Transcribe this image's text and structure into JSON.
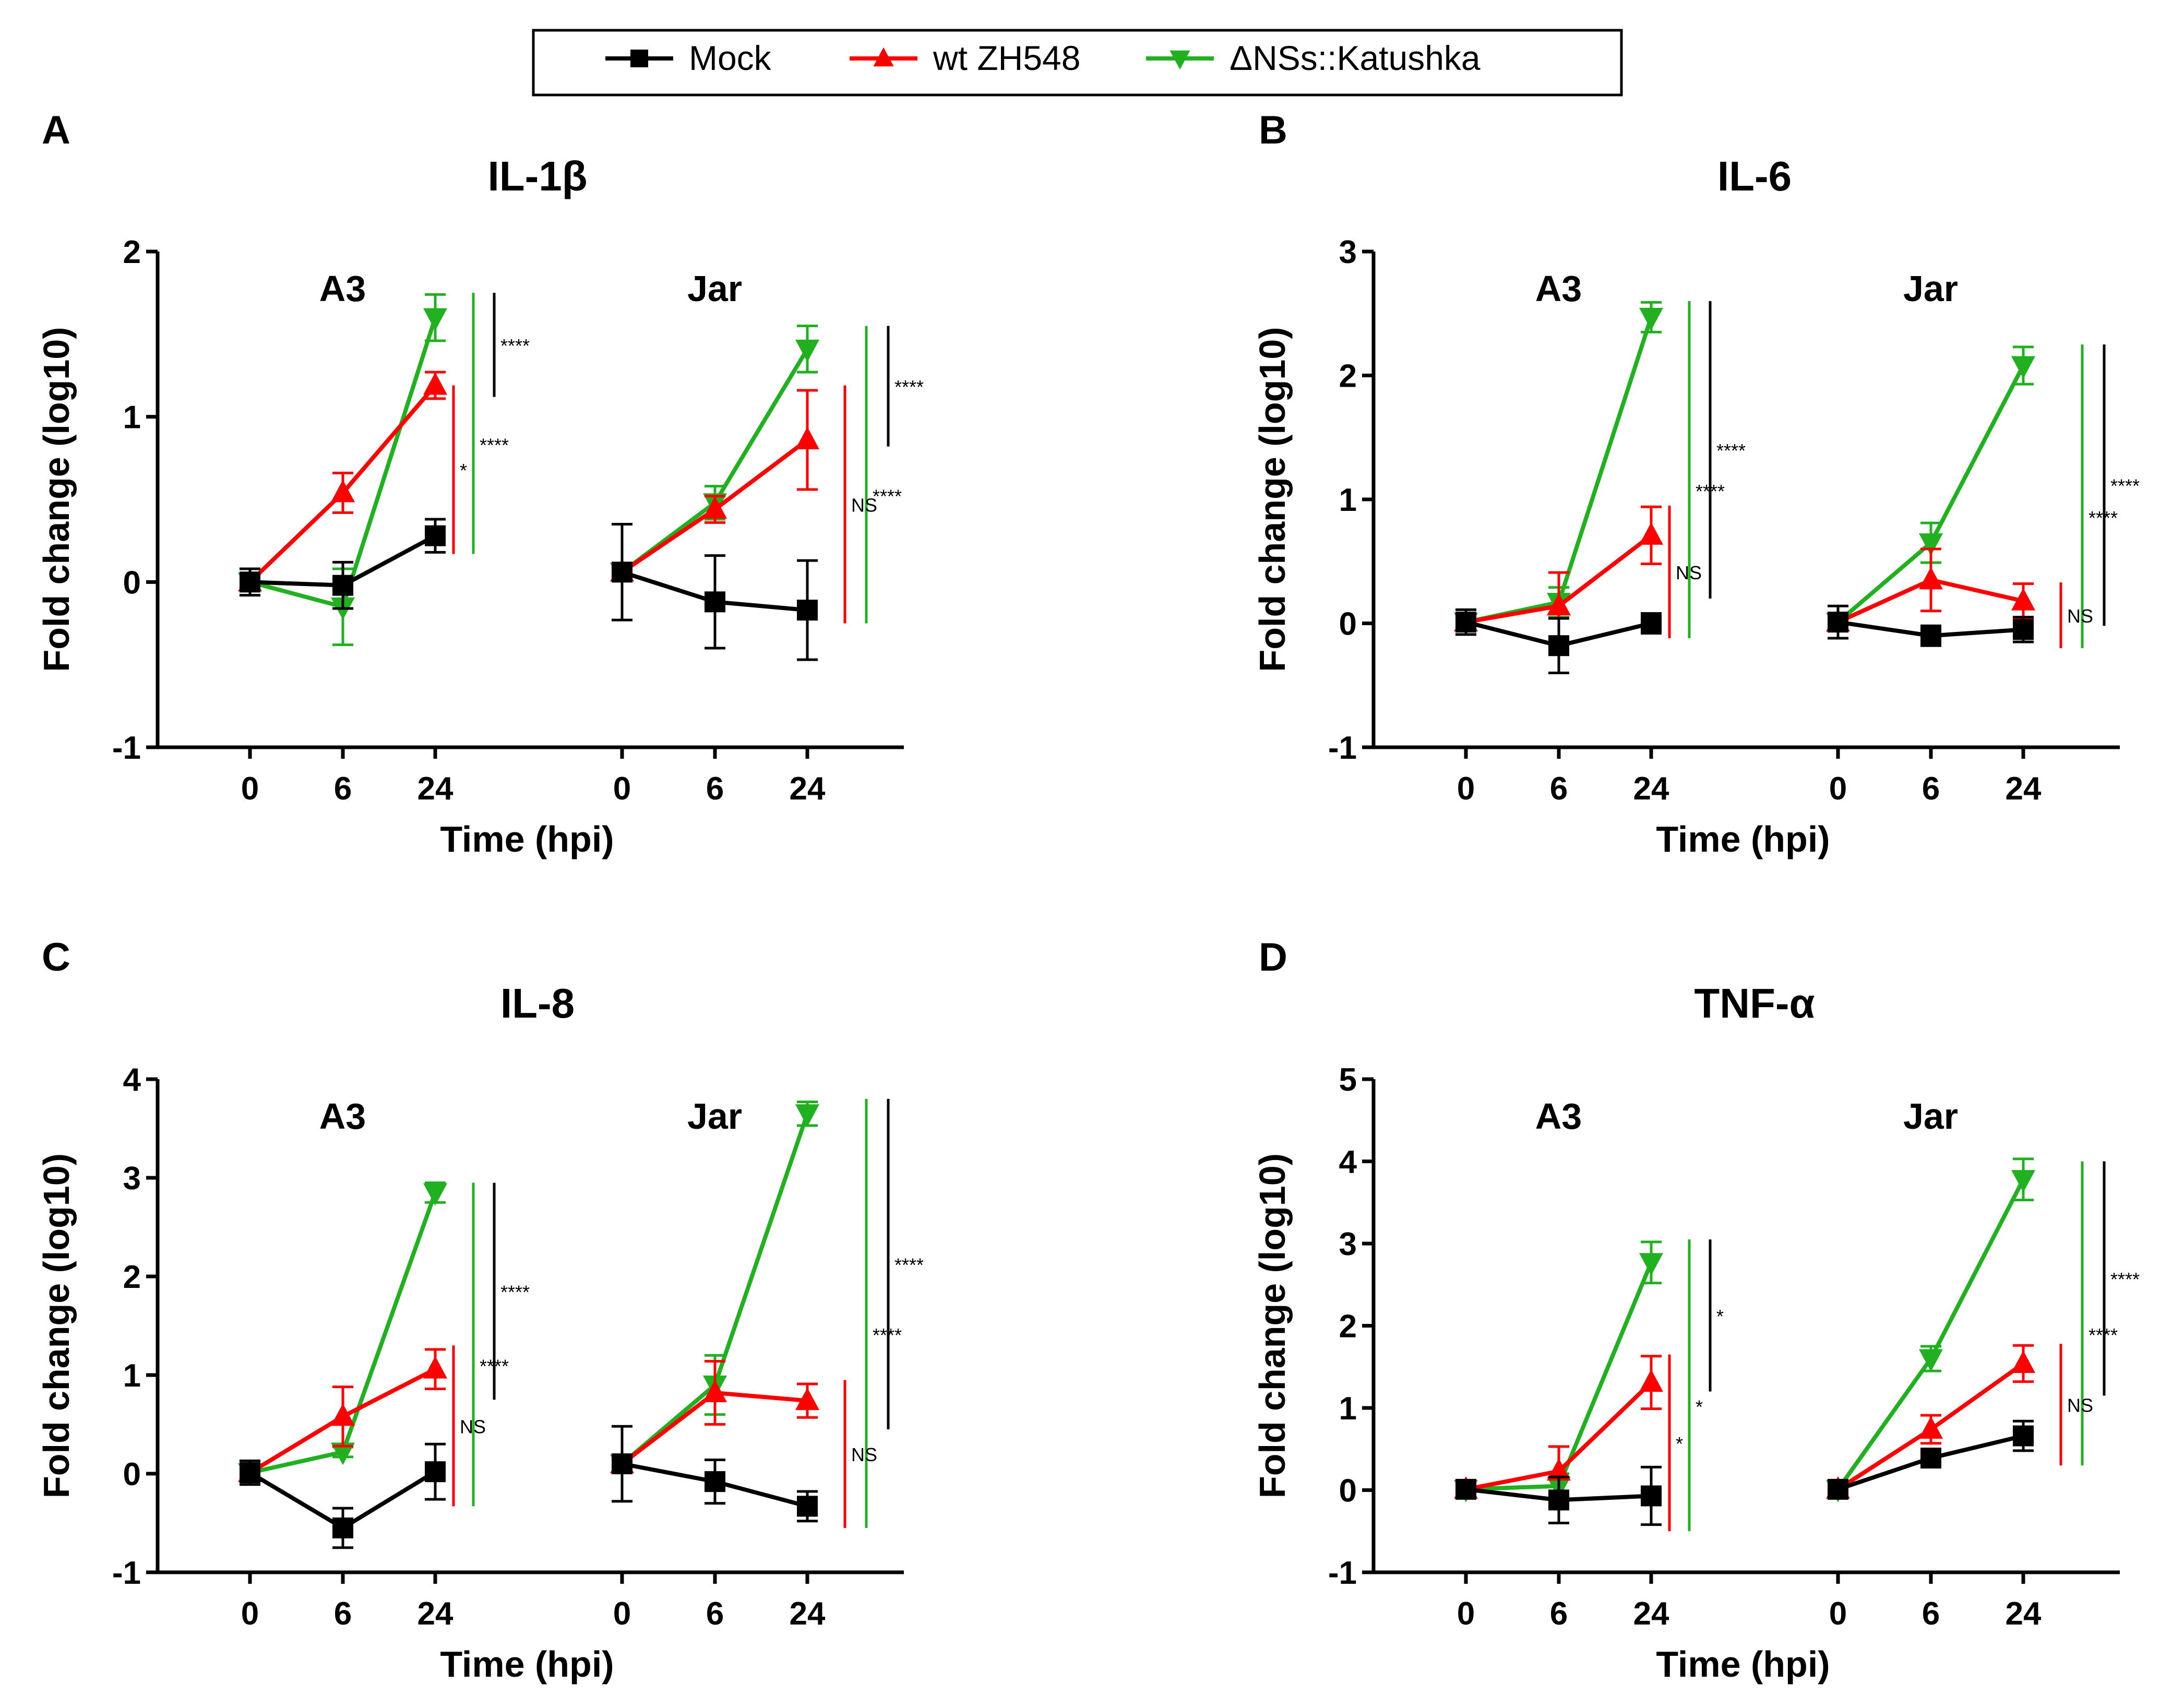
{
  "legend": {
    "items": [
      {
        "label": "Mock",
        "color": "#000000",
        "marker": "square"
      },
      {
        "label": "wt ZH548",
        "color": "#ff0000",
        "marker": "triangle-up"
      },
      {
        "label": "ΔNSs::Katushka",
        "color": "#20b020",
        "marker": "triangle-down"
      }
    ]
  },
  "colors": {
    "mock": "#000000",
    "wt": "#ff0000",
    "dnss": "#20b020",
    "axis": "#000000"
  },
  "chart_data": [
    {
      "panel": "A",
      "type": "line",
      "title": "IL-1β",
      "ylabel": "Fold change (log10)",
      "xlabel": "Time (hpi)",
      "ylim": [
        -1,
        2
      ],
      "yticks": [
        "-1",
        "0",
        "1",
        "2"
      ],
      "groups": [
        {
          "name": "A3",
          "x": [
            "0",
            "6",
            "24"
          ],
          "series": [
            {
              "name": "Mock",
              "values": [
                0.0,
                -0.02,
                0.28
              ],
              "errors": [
                0.08,
                0.14,
                0.1
              ]
            },
            {
              "name": "wt ZH548",
              "values": [
                0.0,
                0.54,
                1.19
              ],
              "errors": [
                0.05,
                0.12,
                0.08
              ]
            },
            {
              "name": "ΔNSs::Katushka",
              "values": [
                0.0,
                -0.15,
                1.6
              ],
              "errors": [
                0.05,
                0.23,
                0.14
              ]
            }
          ],
          "stats": [
            {
              "color": "black",
              "from": 1.12,
              "to": 1.75,
              "label": "****"
            },
            {
              "color": "green",
              "from": 0.17,
              "to": 1.75,
              "label": "****"
            },
            {
              "color": "red",
              "from": 0.17,
              "to": 1.19,
              "label": "*"
            }
          ]
        },
        {
          "name": "Jar",
          "x": [
            "0",
            "6",
            "24"
          ],
          "series": [
            {
              "name": "Mock",
              "values": [
                0.06,
                -0.12,
                -0.17
              ],
              "errors": [
                0.29,
                0.28,
                0.3
              ]
            },
            {
              "name": "wt ZH548",
              "values": [
                0.06,
                0.44,
                0.86
              ],
              "errors": [
                0.05,
                0.08,
                0.3
              ]
            },
            {
              "name": "ΔNSs::Katushka",
              "values": [
                0.06,
                0.48,
                1.41
              ],
              "errors": [
                0.05,
                0.1,
                0.14
              ]
            }
          ],
          "stats": [
            {
              "color": "black",
              "from": 0.82,
              "to": 1.55,
              "label": "****"
            },
            {
              "color": "green",
              "from": -0.25,
              "to": 1.55,
              "label": "****"
            },
            {
              "color": "red",
              "from": -0.25,
              "to": 1.19,
              "label": "NS"
            }
          ]
        }
      ]
    },
    {
      "panel": "B",
      "type": "line",
      "title": "IL-6",
      "ylabel": "Fold change (log10)",
      "xlabel": "Time (hpi)",
      "ylim": [
        -1,
        3
      ],
      "yticks": [
        "-1",
        "0",
        "1",
        "2",
        "3"
      ],
      "groups": [
        {
          "name": "A3",
          "x": [
            "0",
            "6",
            "24"
          ],
          "series": [
            {
              "name": "Mock",
              "values": [
                0.01,
                -0.18,
                0.0
              ],
              "errors": [
                0.1,
                0.22,
                0.08
              ]
            },
            {
              "name": "wt ZH548",
              "values": [
                0.01,
                0.14,
                0.71
              ],
              "errors": [
                0.05,
                0.27,
                0.23
              ]
            },
            {
              "name": "ΔNSs::Katushka",
              "values": [
                0.01,
                0.17,
                2.47
              ],
              "errors": [
                0.05,
                0.12,
                0.12
              ]
            }
          ],
          "stats": [
            {
              "color": "black",
              "from": 0.2,
              "to": 2.6,
              "label": "****"
            },
            {
              "color": "green",
              "from": -0.12,
              "to": 2.6,
              "label": "****"
            },
            {
              "color": "red",
              "from": -0.12,
              "to": 0.95,
              "label": "NS"
            }
          ]
        },
        {
          "name": "Jar",
          "x": [
            "0",
            "6",
            "24"
          ],
          "series": [
            {
              "name": "Mock",
              "values": [
                0.01,
                -0.1,
                -0.05
              ],
              "errors": [
                0.13,
                0.08,
                0.1
              ]
            },
            {
              "name": "wt ZH548",
              "values": [
                0.01,
                0.35,
                0.18
              ],
              "errors": [
                0.05,
                0.25,
                0.14
              ]
            },
            {
              "name": "ΔNSs::Katushka",
              "values": [
                0.01,
                0.65,
                2.08
              ],
              "errors": [
                0.05,
                0.16,
                0.15
              ]
            }
          ],
          "stats": [
            {
              "color": "black",
              "from": -0.02,
              "to": 2.25,
              "label": "****"
            },
            {
              "color": "green",
              "from": -0.2,
              "to": 2.25,
              "label": "****"
            },
            {
              "color": "red",
              "from": -0.2,
              "to": 0.33,
              "label": "NS"
            }
          ]
        }
      ]
    },
    {
      "panel": "C",
      "type": "line",
      "title": "IL-8",
      "ylabel": "Fold change (log10)",
      "xlabel": "Time (hpi)",
      "ylim": [
        -1,
        4
      ],
      "yticks": [
        "-1",
        "0",
        "1",
        "2",
        "3",
        "4"
      ],
      "groups": [
        {
          "name": "A3",
          "x": [
            "0",
            "6",
            "24"
          ],
          "series": [
            {
              "name": "Mock",
              "values": [
                0.01,
                -0.55,
                0.02
              ],
              "errors": [
                0.12,
                0.2,
                0.28
              ]
            },
            {
              "name": "wt ZH548",
              "values": [
                0.01,
                0.58,
                1.06
              ],
              "errors": [
                0.05,
                0.3,
                0.2
              ]
            },
            {
              "name": "ΔNSs::Katushka",
              "values": [
                0.01,
                0.22,
                2.85
              ],
              "errors": [
                0.05,
                0.05,
                0.1
              ]
            }
          ],
          "stats": [
            {
              "color": "black",
              "from": 0.75,
              "to": 2.95,
              "label": "****"
            },
            {
              "color": "green",
              "from": -0.33,
              "to": 2.95,
              "label": "****"
            },
            {
              "color": "red",
              "from": -0.33,
              "to": 1.3,
              "label": "NS"
            }
          ]
        },
        {
          "name": "Jar",
          "x": [
            "0",
            "6",
            "24"
          ],
          "series": [
            {
              "name": "Mock",
              "values": [
                0.1,
                -0.08,
                -0.33
              ],
              "errors": [
                0.38,
                0.22,
                0.15
              ]
            },
            {
              "name": "wt ZH548",
              "values": [
                0.1,
                0.82,
                0.74
              ],
              "errors": [
                0.05,
                0.32,
                0.17
              ]
            },
            {
              "name": "ΔNSs::Katushka",
              "values": [
                0.1,
                0.9,
                3.65
              ],
              "errors": [
                0.05,
                0.3,
                0.12
              ]
            }
          ],
          "stats": [
            {
              "color": "black",
              "from": 0.45,
              "to": 3.8,
              "label": "****"
            },
            {
              "color": "green",
              "from": -0.55,
              "to": 3.8,
              "label": "****"
            },
            {
              "color": "red",
              "from": -0.55,
              "to": 0.95,
              "label": "NS"
            }
          ]
        }
      ]
    },
    {
      "panel": "D",
      "type": "line",
      "title": "TNF-α",
      "ylabel": "Fold change (log10)",
      "xlabel": "Time (hpi)",
      "ylim": [
        -1,
        5
      ],
      "yticks": [
        "-1",
        "0",
        "1",
        "2",
        "3",
        "4",
        "5"
      ],
      "groups": [
        {
          "name": "A3",
          "x": [
            "0",
            "6",
            "24"
          ],
          "series": [
            {
              "name": "Mock",
              "values": [
                0.01,
                -0.12,
                -0.07
              ],
              "errors": [
                0.1,
                0.28,
                0.35
              ]
            },
            {
              "name": "wt ZH548",
              "values": [
                0.01,
                0.23,
                1.31
              ],
              "errors": [
                0.05,
                0.3,
                0.32
              ]
            },
            {
              "name": "ΔNSs::Katushka",
              "values": [
                0.01,
                0.05,
                2.77
              ],
              "errors": [
                0.05,
                0.15,
                0.25
              ]
            }
          ],
          "stats": [
            {
              "color": "black",
              "from": 1.2,
              "to": 3.05,
              "label": "*"
            },
            {
              "color": "green",
              "from": -0.5,
              "to": 3.05,
              "label": "*"
            },
            {
              "color": "red",
              "from": -0.5,
              "to": 1.65,
              "label": "*"
            }
          ]
        },
        {
          "name": "Jar",
          "x": [
            "0",
            "6",
            "24"
          ],
          "series": [
            {
              "name": "Mock",
              "values": [
                0.01,
                0.39,
                0.66
              ],
              "errors": [
                0.05,
                0.08,
                0.18
              ]
            },
            {
              "name": "wt ZH548",
              "values": [
                0.01,
                0.74,
                1.54
              ],
              "errors": [
                0.05,
                0.17,
                0.22
              ]
            },
            {
              "name": "ΔNSs::Katushka",
              "values": [
                0.01,
                1.6,
                3.78
              ],
              "errors": [
                0.05,
                0.15,
                0.25
              ]
            }
          ],
          "stats": [
            {
              "color": "black",
              "from": 1.15,
              "to": 4.0,
              "label": "****"
            },
            {
              "color": "green",
              "from": 0.3,
              "to": 4.0,
              "label": "****"
            },
            {
              "color": "red",
              "from": 0.3,
              "to": 1.78,
              "label": "NS"
            }
          ]
        }
      ]
    }
  ]
}
